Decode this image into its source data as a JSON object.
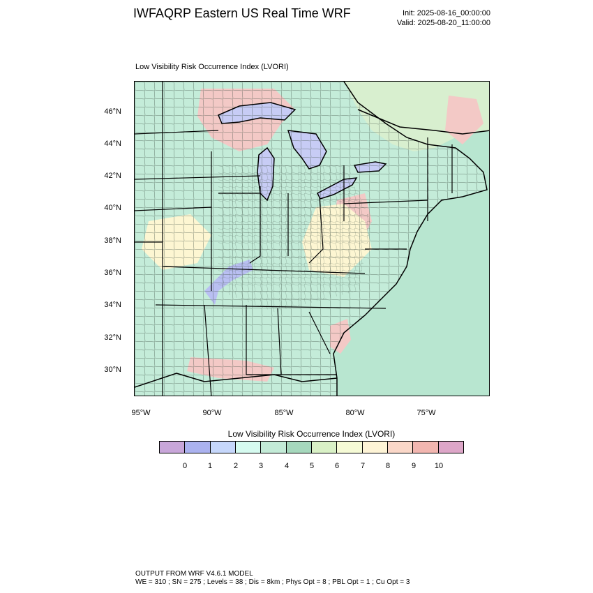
{
  "header": {
    "title": "IWFAQRP Eastern US Real Time WRF",
    "init": "Init: 2025-08-16_00:00:00",
    "valid": "Valid: 2025-08-20_11:00:00"
  },
  "map": {
    "subtitle": "Low Visibility Risk Occurrence Index   (LVORI)",
    "lat_labels": [
      "46°N",
      "44°N",
      "42°N",
      "40°N",
      "38°N",
      "36°N",
      "34°N",
      "32°N",
      "30°N"
    ],
    "lon_labels": [
      "95°W",
      "90°W",
      "85°W",
      "80°W",
      "75°W"
    ],
    "colors": {
      "background": "#c4ecd9",
      "ocean": "#b8e6d0",
      "lake": "#c7ccf5",
      "low_risk_blue": "#b9bff2",
      "elevated": "#f3c9c6",
      "high": "#efaaaa",
      "moderate": "#fdf6d2"
    }
  },
  "colorbar": {
    "title": "Low Visibility Risk Occurrence Index  (LVORI)",
    "colors": [
      "#c8a6d9",
      "#abb2ef",
      "#c6d7fb",
      "#d6fbf0",
      "#c3ebd7",
      "#a6d8bd",
      "#d9f1c6",
      "#f6fbd6",
      "#fef4d6",
      "#fad7c8",
      "#f2b6b0",
      "#dda6c8"
    ],
    "tick_labels": [
      "0",
      "1",
      "2",
      "3",
      "4",
      "5",
      "6",
      "7",
      "8",
      "9",
      "10"
    ]
  },
  "footer": {
    "line1": "OUTPUT FROM WRF V4.6.1 MODEL",
    "line2": "WE = 310 ; SN = 275 ; Levels = 38 ; Dis = 8km ; Phys Opt = 8 ; PBL Opt = 1 ; Cu Opt = 3"
  }
}
